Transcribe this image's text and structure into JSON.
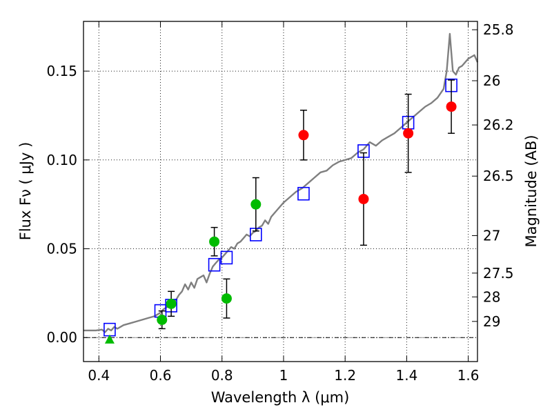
{
  "chart_data": {
    "type": "scatter",
    "xlabel": "Wavelength  λ (μm)",
    "ylabel": "Flux  Fν  ( μJy )",
    "ylabel_right": "Magnitude (AB)",
    "xlim": [
      0.35,
      1.63
    ],
    "ylim": [
      -0.0135,
      0.178
    ],
    "grid": true,
    "x_ticks": [
      {
        "value": 0.4,
        "label": "0.4"
      },
      {
        "value": 0.6,
        "label": "0.6"
      },
      {
        "value": 0.8,
        "label": "0.8"
      },
      {
        "value": 1.0,
        "label": "1"
      },
      {
        "value": 1.2,
        "label": "1.2"
      },
      {
        "value": 1.4,
        "label": "1.4"
      },
      {
        "value": 1.6,
        "label": "1.6"
      }
    ],
    "y_ticks": [
      {
        "value": 0.0,
        "label": "0.00"
      },
      {
        "value": 0.05,
        "label": "0.05"
      },
      {
        "value": 0.1,
        "label": "0.10"
      },
      {
        "value": 0.15,
        "label": "0.15"
      }
    ],
    "right_ticks": [
      {
        "flux": 0.1733,
        "label": "25.8"
      },
      {
        "flux": 0.1446,
        "label": "26"
      },
      {
        "flux": 0.1197,
        "label": "26.2"
      },
      {
        "flux": 0.0909,
        "label": "26.5"
      },
      {
        "flux": 0.0574,
        "label": "27"
      },
      {
        "flux": 0.0363,
        "label": "27.5"
      },
      {
        "flux": 0.0229,
        "label": "28"
      },
      {
        "flux": 0.0091,
        "label": "29"
      }
    ],
    "model_spectrum": {
      "color": "#7f7f7f",
      "x": [
        0.35,
        0.37,
        0.39,
        0.41,
        0.42,
        0.43,
        0.44,
        0.45,
        0.46,
        0.48,
        0.5,
        0.52,
        0.54,
        0.56,
        0.58,
        0.59,
        0.6,
        0.61,
        0.62,
        0.63,
        0.64,
        0.65,
        0.66,
        0.67,
        0.68,
        0.69,
        0.7,
        0.71,
        0.72,
        0.73,
        0.74,
        0.75,
        0.76,
        0.77,
        0.78,
        0.79,
        0.8,
        0.81,
        0.82,
        0.83,
        0.84,
        0.85,
        0.86,
        0.87,
        0.88,
        0.89,
        0.9,
        0.91,
        0.92,
        0.93,
        0.94,
        0.95,
        0.96,
        0.98,
        1.0,
        1.02,
        1.04,
        1.06,
        1.08,
        1.1,
        1.12,
        1.14,
        1.16,
        1.18,
        1.2,
        1.22,
        1.24,
        1.26,
        1.28,
        1.3,
        1.32,
        1.34,
        1.36,
        1.38,
        1.4,
        1.42,
        1.44,
        1.46,
        1.48,
        1.5,
        1.52,
        1.53,
        1.54,
        1.55,
        1.56,
        1.57,
        1.58,
        1.59,
        1.6,
        1.61,
        1.62,
        1.63
      ],
      "y": [
        0.004,
        0.004,
        0.004,
        0.0045,
        0.003,
        0.005,
        0.004,
        0.006,
        0.005,
        0.007,
        0.008,
        0.009,
        0.01,
        0.011,
        0.012,
        0.013,
        0.014,
        0.016,
        0.017,
        0.018,
        0.019,
        0.021,
        0.024,
        0.026,
        0.03,
        0.027,
        0.031,
        0.028,
        0.033,
        0.034,
        0.035,
        0.031,
        0.036,
        0.04,
        0.042,
        0.044,
        0.045,
        0.047,
        0.049,
        0.051,
        0.05,
        0.053,
        0.054,
        0.056,
        0.058,
        0.057,
        0.059,
        0.06,
        0.062,
        0.063,
        0.066,
        0.064,
        0.068,
        0.072,
        0.076,
        0.079,
        0.082,
        0.084,
        0.087,
        0.09,
        0.093,
        0.094,
        0.097,
        0.099,
        0.1,
        0.101,
        0.104,
        0.106,
        0.11,
        0.108,
        0.111,
        0.113,
        0.115,
        0.118,
        0.121,
        0.124,
        0.127,
        0.13,
        0.132,
        0.135,
        0.14,
        0.15,
        0.171,
        0.15,
        0.148,
        0.152,
        0.153,
        0.155,
        0.157,
        0.158,
        0.159,
        0.155
      ]
    },
    "model_bands": {
      "color": "#0000ff",
      "x": [
        0.435,
        0.6,
        0.635,
        0.775,
        0.815,
        0.91,
        1.065,
        1.26,
        1.405,
        1.545
      ],
      "y": [
        0.0045,
        0.015,
        0.018,
        0.041,
        0.045,
        0.058,
        0.081,
        0.105,
        0.121,
        0.142
      ]
    },
    "observed_hst": {
      "color": "#00bb00",
      "points": [
        {
          "x": 0.435,
          "y": -0.001,
          "marker": "triangle"
        },
        {
          "x": 0.605,
          "y": 0.01,
          "err": 0.005
        },
        {
          "x": 0.635,
          "y": 0.019,
          "err": 0.007
        },
        {
          "x": 0.775,
          "y": 0.054,
          "err": 0.008
        },
        {
          "x": 0.815,
          "y": 0.022,
          "err": 0.011
        },
        {
          "x": 0.91,
          "y": 0.075,
          "err": 0.015
        }
      ]
    },
    "observed_ir": {
      "color": "#ff0000",
      "points": [
        {
          "x": 1.065,
          "y": 0.114,
          "err": 0.014
        },
        {
          "x": 1.26,
          "y": 0.078,
          "err": 0.026
        },
        {
          "x": 1.405,
          "y": 0.115,
          "err": 0.022
        },
        {
          "x": 1.545,
          "y": 0.13,
          "err": 0.015
        }
      ]
    }
  }
}
